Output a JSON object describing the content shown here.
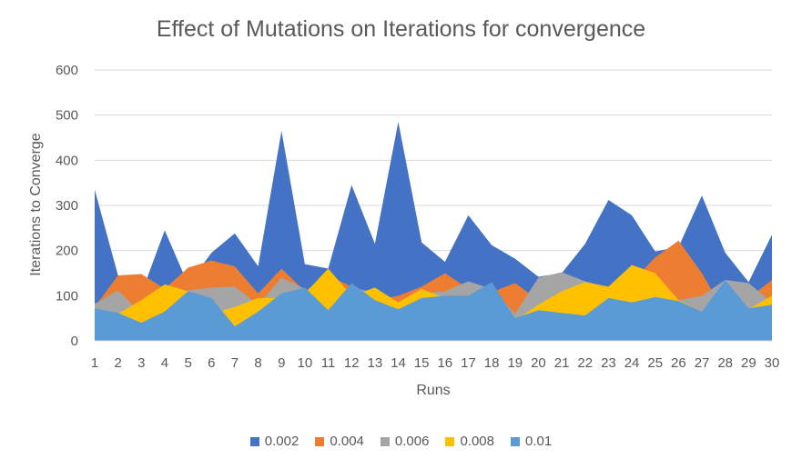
{
  "chart_data": {
    "type": "area",
    "title": "Effect of Mutations on Iterations for convergence",
    "xlabel": "Runs",
    "ylabel": "Iterations to Converge",
    "ylim": [
      0,
      600
    ],
    "yticks": [
      0,
      100,
      200,
      300,
      400,
      500,
      600
    ],
    "grid": true,
    "legend_position": "bottom",
    "x": [
      "1",
      "2",
      "3",
      "4",
      "5",
      "6",
      "7",
      "8",
      "9",
      "10",
      "11",
      "12",
      "13",
      "14",
      "15",
      "16",
      "17",
      "18",
      "19",
      "20",
      "21",
      "22",
      "23",
      "24",
      "25",
      "26",
      "27",
      "28",
      "29",
      "30"
    ],
    "series": [
      {
        "name": "0.002",
        "color": "#4472C4",
        "values": [
          335,
          145,
          105,
          245,
          125,
          195,
          238,
          165,
          465,
          170,
          160,
          345,
          215,
          485,
          218,
          175,
          278,
          212,
          182,
          142,
          150,
          215,
          312,
          278,
          198,
          208,
          322,
          195,
          130,
          235
        ]
      },
      {
        "name": "0.004",
        "color": "#ED7D31",
        "values": [
          75,
          145,
          148,
          115,
          162,
          178,
          165,
          105,
          160,
          110,
          145,
          120,
          90,
          100,
          120,
          150,
          115,
          108,
          128,
          90,
          145,
          120,
          100,
          130,
          185,
          222,
          150,
          60,
          95,
          135
        ]
      },
      {
        "name": "0.006",
        "color": "#A5A5A5",
        "values": [
          82,
          112,
          60,
          100,
          112,
          118,
          120,
          80,
          140,
          115,
          100,
          120,
          105,
          70,
          105,
          110,
          132,
          115,
          60,
          140,
          152,
          132,
          118,
          105,
          105,
          90,
          100,
          135,
          128,
          85
        ]
      },
      {
        "name": "0.008",
        "color": "#FFC000",
        "values": [
          70,
          60,
          90,
          125,
          110,
          60,
          75,
          95,
          95,
          105,
          160,
          100,
          118,
          85,
          115,
          95,
          100,
          90,
          45,
          80,
          110,
          130,
          120,
          168,
          150,
          90,
          65,
          130,
          70,
          100
        ]
      },
      {
        "name": "0.01",
        "color": "#5B9BD5",
        "values": [
          72,
          62,
          40,
          65,
          110,
          95,
          32,
          65,
          105,
          118,
          68,
          128,
          90,
          70,
          95,
          100,
          100,
          130,
          50,
          68,
          62,
          56,
          95,
          85,
          97,
          88,
          65,
          135,
          72,
          80
        ]
      }
    ]
  }
}
